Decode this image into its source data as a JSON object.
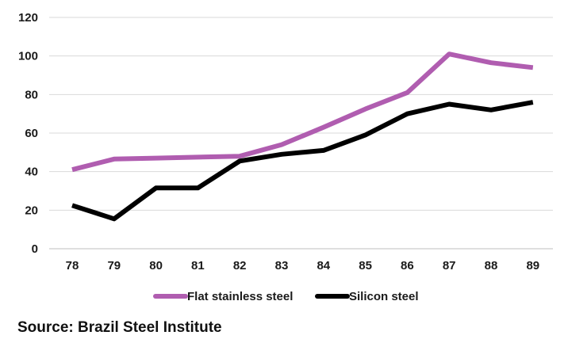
{
  "chart_data": {
    "type": "line",
    "title": "",
    "xlabel": "",
    "ylabel": "",
    "categories": [
      "78",
      "79",
      "80",
      "81",
      "82",
      "83",
      "84",
      "85",
      "86",
      "87",
      "88",
      "89"
    ],
    "ylim": [
      0,
      120
    ],
    "yticks": [
      0,
      20,
      40,
      60,
      80,
      100,
      120
    ],
    "grid": "horizontal",
    "legend_position": "bottom",
    "series": [
      {
        "name": "Flat stainless steel",
        "color": "#b05db0",
        "values": [
          41,
          46.5,
          47,
          47.5,
          48,
          54,
          63,
          72.5,
          81,
          101,
          96.5,
          94
        ]
      },
      {
        "name": "Silicon steel",
        "color": "#000000",
        "values": [
          22.5,
          15.5,
          31.5,
          31.5,
          45.5,
          49,
          51,
          59,
          70,
          75,
          72,
          76
        ]
      }
    ]
  },
  "source": "Source: Brazil Steel Institute"
}
